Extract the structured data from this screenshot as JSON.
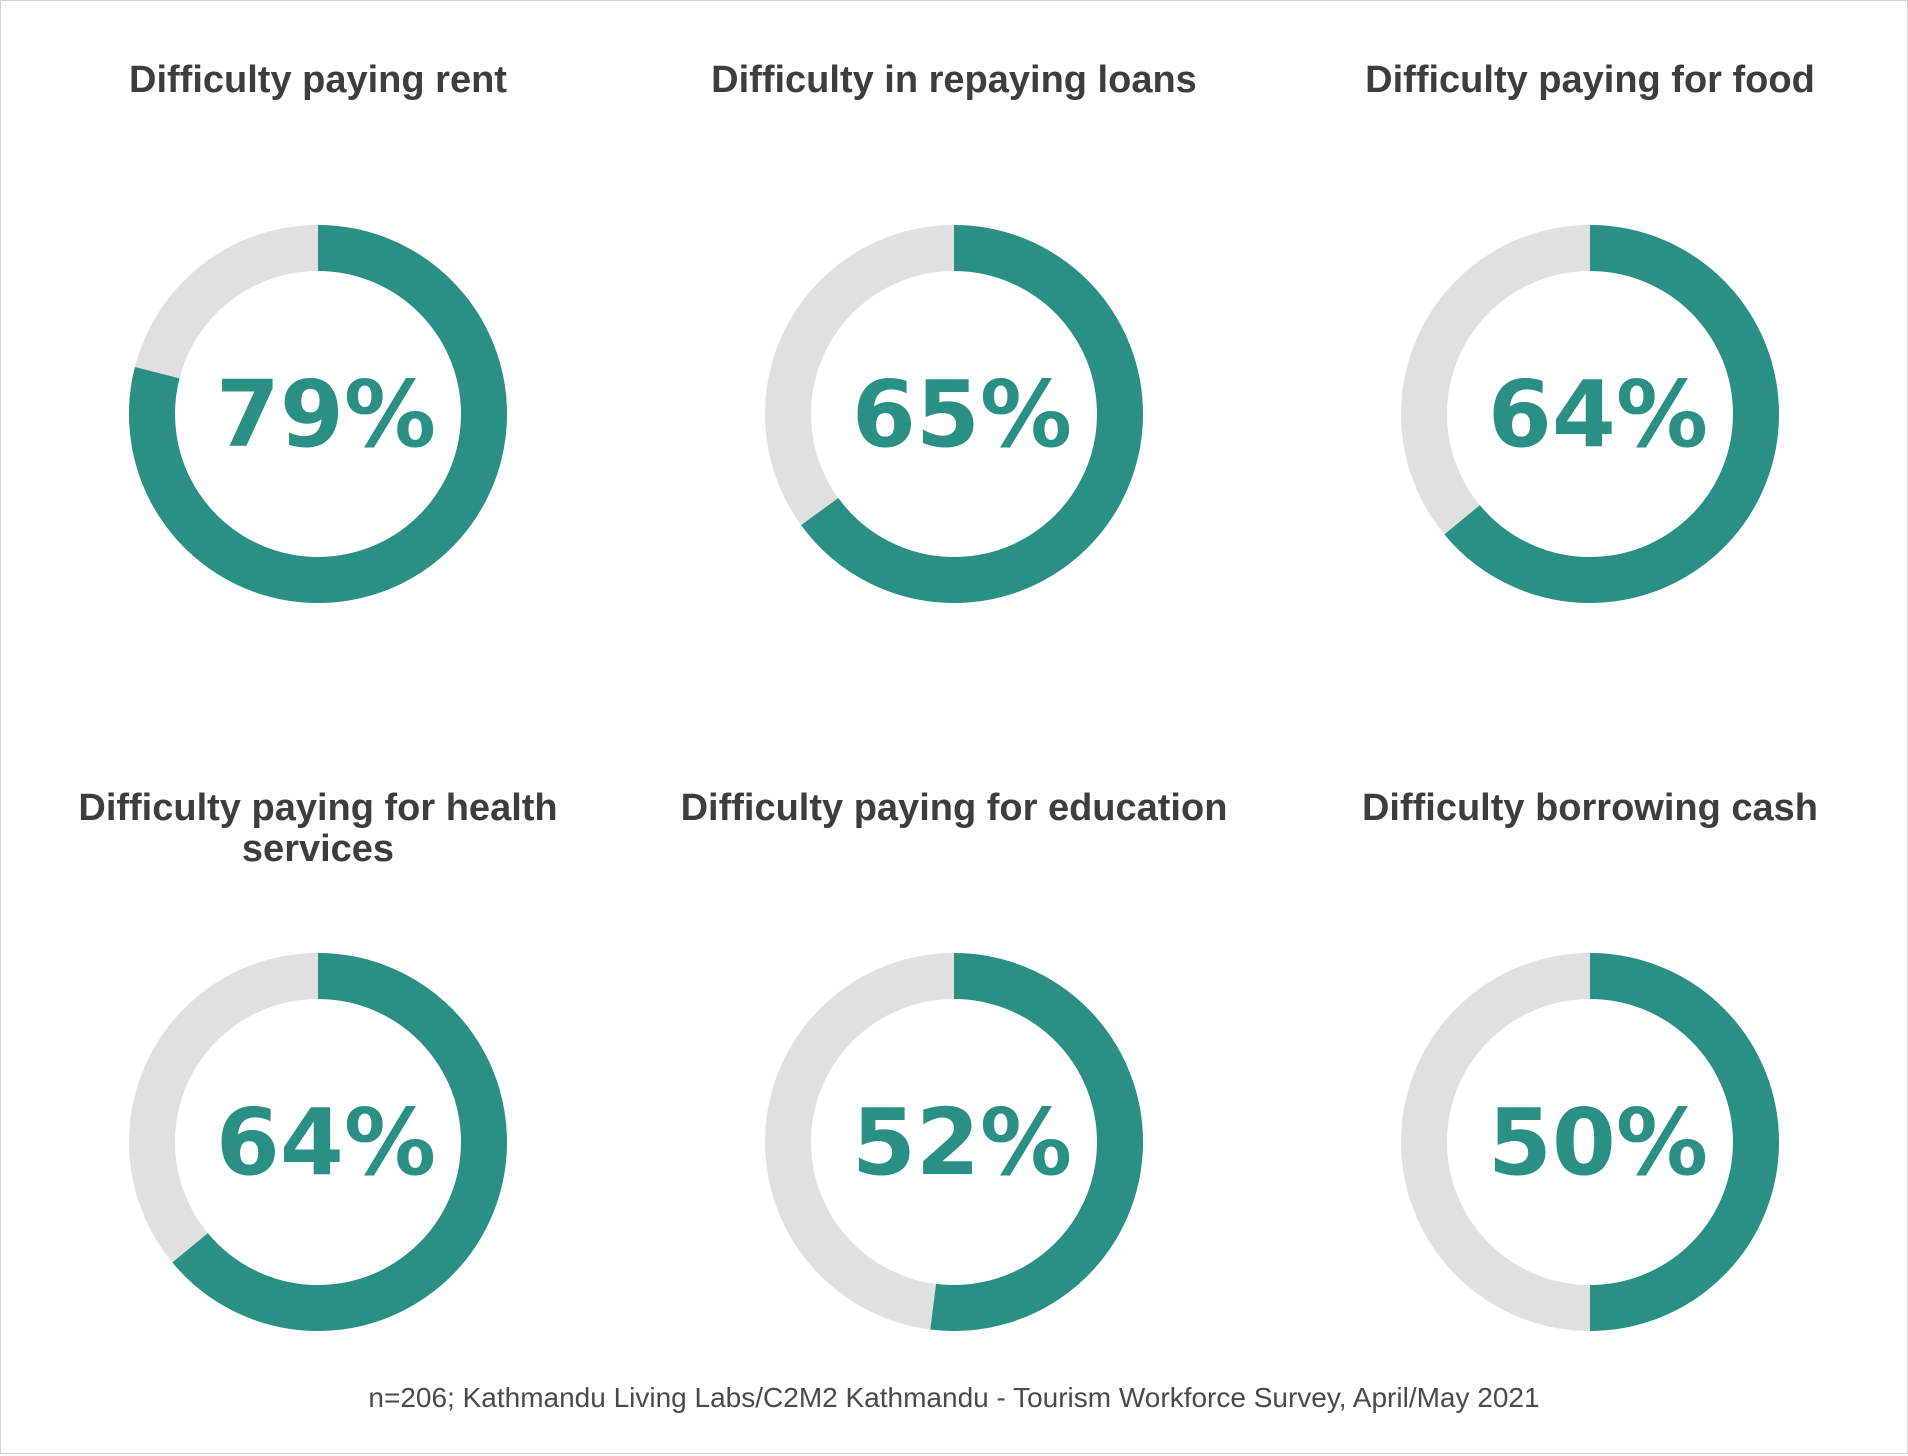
{
  "chart_data": [
    {
      "type": "pie",
      "title": "Difficulty paying rent",
      "value": 79,
      "label": "79%"
    },
    {
      "type": "pie",
      "title": "Difficulty in repaying loans",
      "value": 65,
      "label": "65%"
    },
    {
      "type": "pie",
      "title": "Difficulty paying for food",
      "value": 64,
      "label": "64%"
    },
    {
      "type": "pie",
      "title": "Difficulty paying for health services",
      "value": 64,
      "label": "64%"
    },
    {
      "type": "pie",
      "title": "Difficulty paying for education",
      "value": 52,
      "label": "52%"
    },
    {
      "type": "pie",
      "title": "Difficulty borrowing cash",
      "value": 50,
      "label": "50%"
    }
  ],
  "colors": {
    "filled": "#2a9083",
    "track": "#e0e0e0",
    "title_text": "#3d3d3d"
  },
  "footer": "n=206; Kathmandu Living Labs/C2M2 Kathmandu - Tourism Workforce Survey, April/May 2021"
}
